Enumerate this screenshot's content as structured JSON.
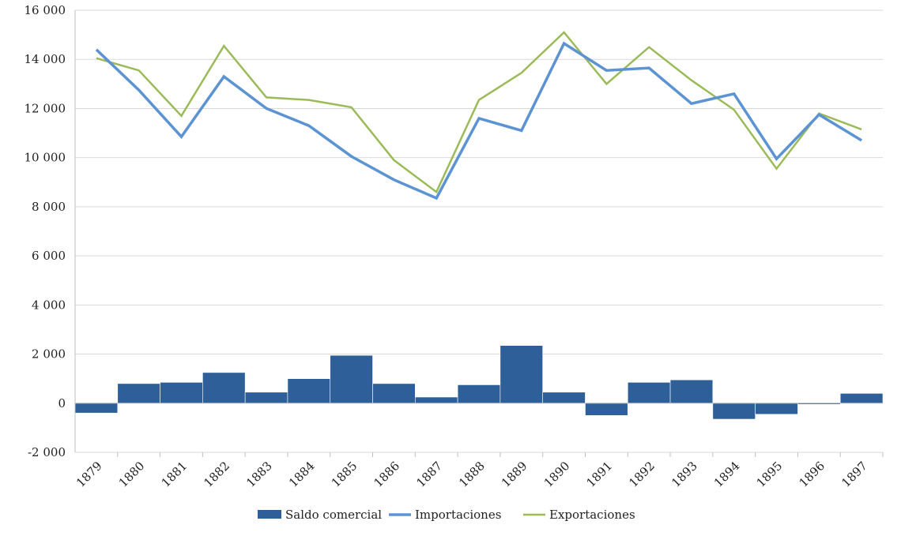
{
  "chart_data": {
    "type": "bar+line",
    "title": "",
    "xlabel": "",
    "ylabel": "",
    "ylim": [
      -2000,
      16000
    ],
    "yticks": [
      -2000,
      0,
      2000,
      4000,
      6000,
      8000,
      10000,
      12000,
      14000,
      16000
    ],
    "ytick_labels": [
      "-2 000",
      "0",
      "2 000",
      "4 000",
      "6 000",
      "8 000",
      "10 000",
      "12 000",
      "14 000",
      "16 000"
    ],
    "grid": true,
    "legend_position": "bottom-center",
    "categories": [
      "1879",
      "1880",
      "1881",
      "1882",
      "1883",
      "1884",
      "1885",
      "1886",
      "1887",
      "1888",
      "1889",
      "1890",
      "1891",
      "1892",
      "1893",
      "1894",
      "1895",
      "1896",
      "1897"
    ],
    "series": [
      {
        "name": "Saldo comercial",
        "kind": "bar",
        "color": "#2e5f98",
        "values": [
          -400,
          800,
          850,
          1250,
          450,
          1000,
          1950,
          800,
          250,
          750,
          2350,
          450,
          -500,
          850,
          950,
          -650,
          -450,
          -50,
          400
        ]
      },
      {
        "name": "Importaciones",
        "kind": "line",
        "color": "#5b93d3",
        "values": [
          14400,
          12750,
          10850,
          13300,
          12000,
          11300,
          10050,
          9100,
          8350,
          11600,
          11100,
          14650,
          13550,
          13650,
          12200,
          12600,
          9950,
          11750,
          10700
        ]
      },
      {
        "name": "Exportaciones",
        "kind": "line",
        "color": "#9bbb59",
        "values": [
          14050,
          13550,
          11700,
          14550,
          12450,
          12350,
          12050,
          9900,
          8600,
          12350,
          13450,
          15100,
          13000,
          14500,
          13150,
          11950,
          9550,
          11800,
          11150
        ]
      }
    ]
  }
}
